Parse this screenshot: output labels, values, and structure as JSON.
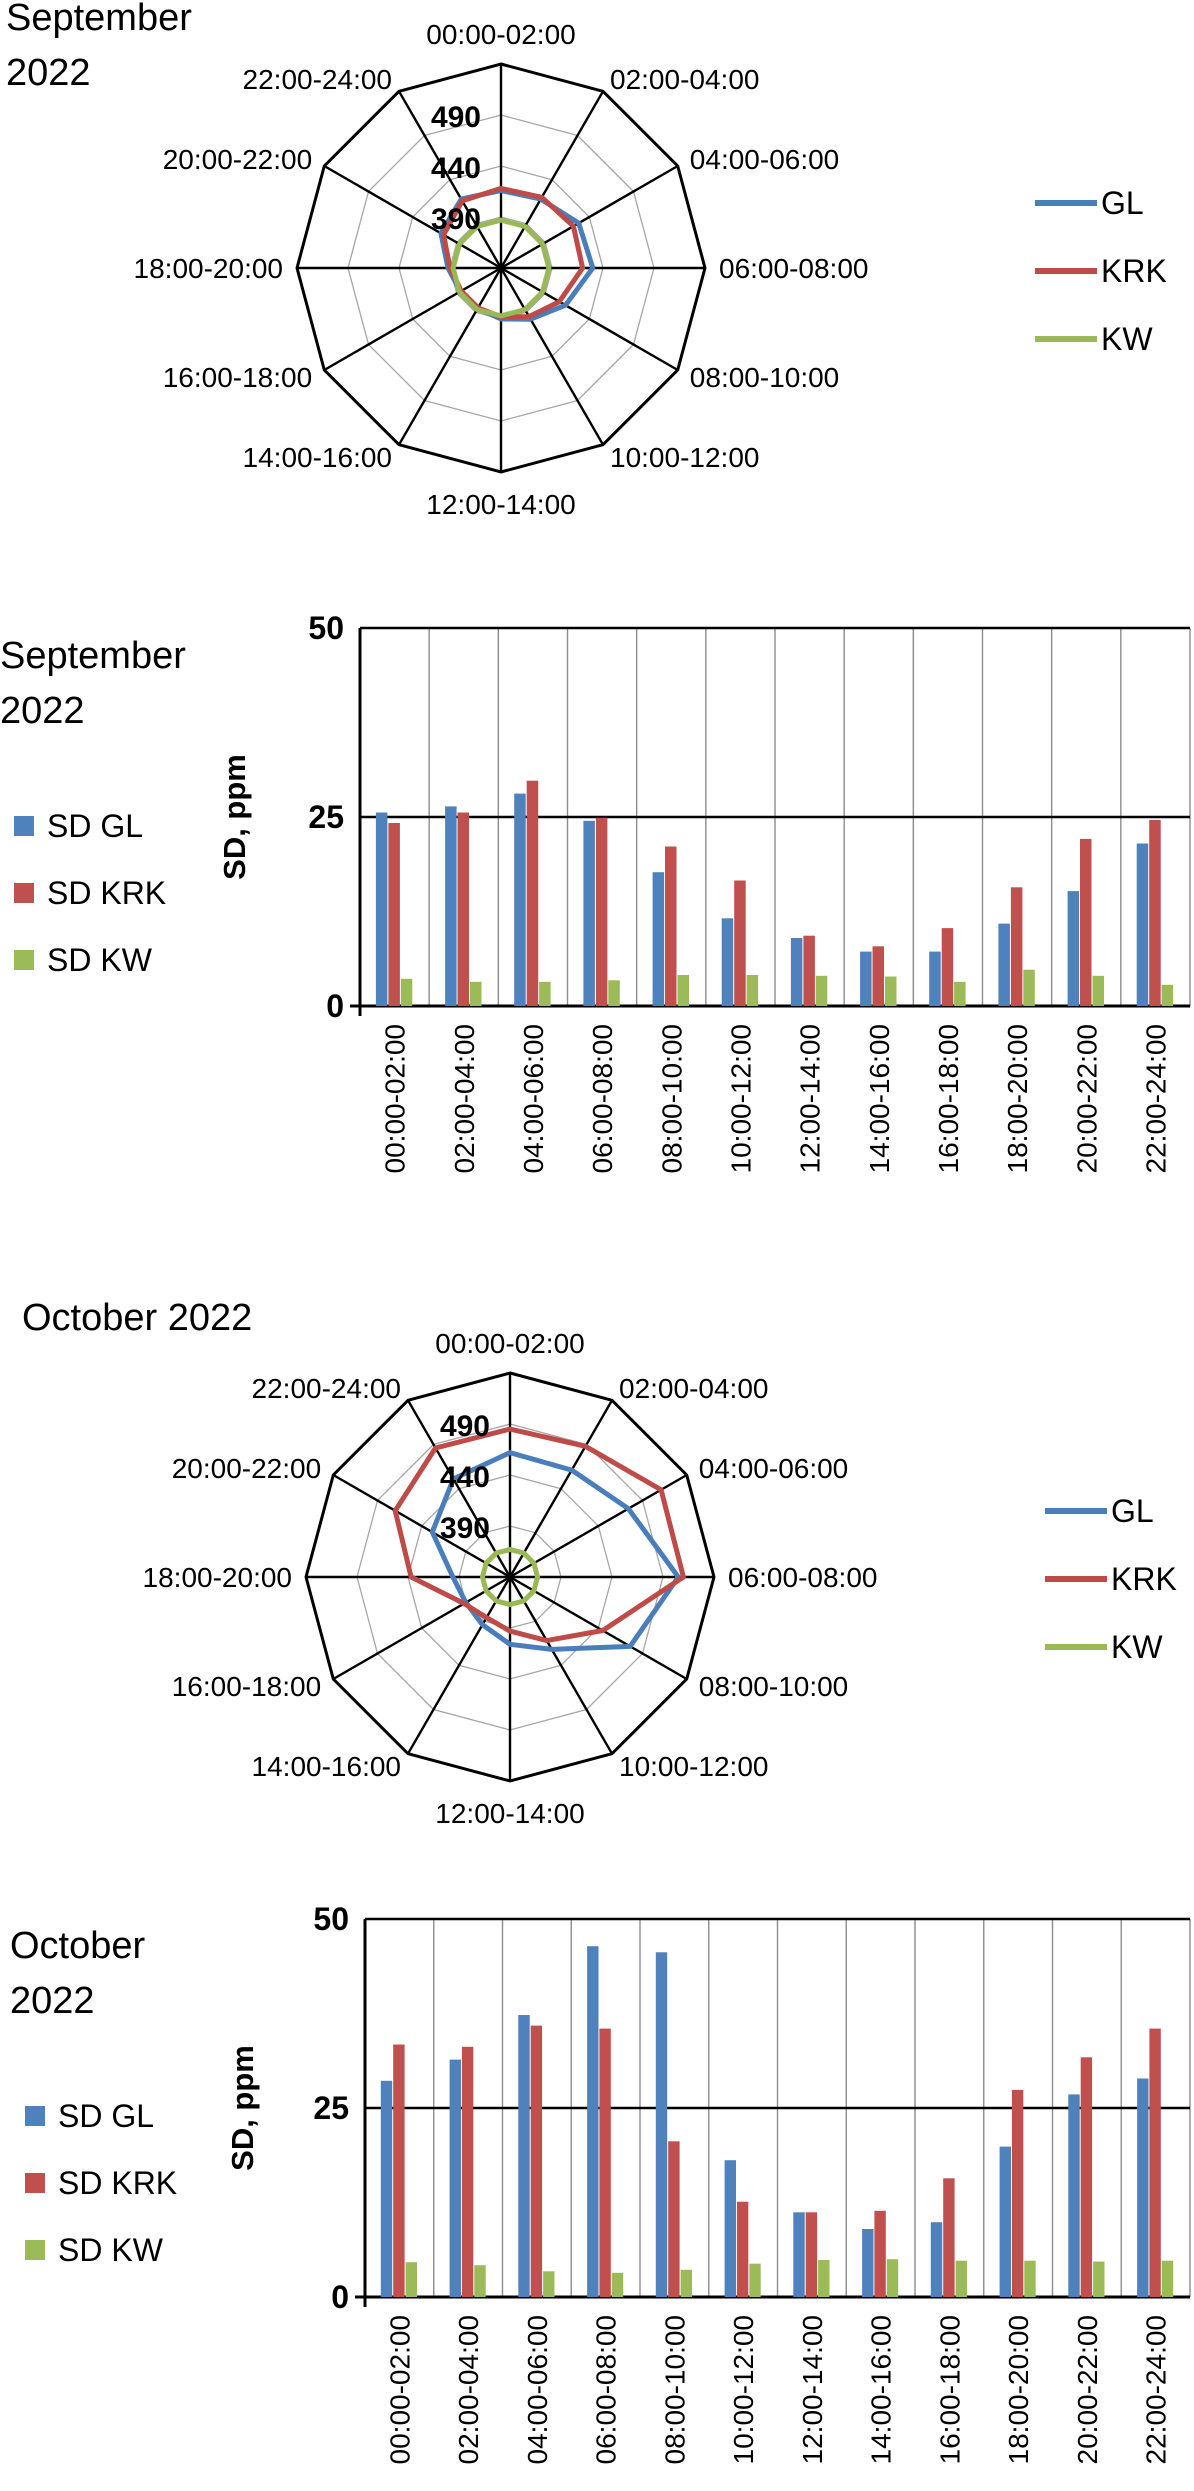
{
  "chart_data": [
    {
      "type": "radar",
      "title": "September 2022",
      "categories": [
        "00:00-02:00",
        "02:00-04:00",
        "04:00-06:00",
        "06:00-08:00",
        "08:00-10:00",
        "10:00-12:00",
        "12:00-14:00",
        "14:00-16:00",
        "16:00-18:00",
        "18:00-20:00",
        "20:00-22:00",
        "22:00-24:00"
      ],
      "scale_min": 340,
      "scale_max": 540,
      "tick_labels": [
        "390",
        "440",
        "490"
      ],
      "ticks": [
        390,
        440,
        490
      ],
      "legend_position": "right",
      "series": [
        {
          "name": "GL",
          "color": "#4a7ebb",
          "values": [
            416,
            418,
            428,
            430,
            413,
            398,
            390,
            386,
            386,
            392,
            408,
            418
          ]
        },
        {
          "name": "KRK",
          "color": "#be4b48",
          "values": [
            418,
            420,
            422,
            420,
            406,
            395,
            388,
            385,
            385,
            390,
            405,
            416
          ]
        },
        {
          "name": "KW",
          "color": "#98b954",
          "values": [
            387,
            387,
            387,
            387,
            387,
            387,
            387,
            387,
            387,
            387,
            387,
            387
          ]
        }
      ]
    },
    {
      "type": "bar",
      "title": "September 2022",
      "ylabel": "SD, ppm",
      "ylim": [
        0,
        50
      ],
      "yticks": [
        0,
        25,
        50
      ],
      "categories": [
        "00:00-02:00",
        "02:00-04:00",
        "04:00-06:00",
        "06:00-08:00",
        "08:00-10:00",
        "10:00-12:00",
        "12:00-14:00",
        "14:00-16:00",
        "16:00-18:00",
        "18:00-20:00",
        "20:00-22:00",
        "22:00-24:00"
      ],
      "legend_position": "left",
      "series": [
        {
          "name": "SD GL",
          "color": "#4f81bd",
          "values": [
            25.6,
            26.4,
            28.1,
            24.5,
            17.7,
            11.6,
            9.0,
            7.2,
            7.2,
            10.9,
            15.2,
            21.5
          ]
        },
        {
          "name": "SD KRK",
          "color": "#c0504d",
          "values": [
            24.2,
            25.6,
            29.8,
            24.9,
            21.1,
            16.6,
            9.3,
            7.9,
            10.3,
            15.7,
            22.1,
            24.6
          ]
        },
        {
          "name": "SD KW",
          "color": "#9bbb59",
          "values": [
            3.6,
            3.2,
            3.2,
            3.4,
            4.1,
            4.1,
            4.0,
            3.9,
            3.2,
            4.8,
            4.0,
            2.8
          ]
        }
      ]
    },
    {
      "type": "radar",
      "title": "October 2022",
      "categories": [
        "00:00-02:00",
        "02:00-04:00",
        "04:00-06:00",
        "06:00-08:00",
        "08:00-10:00",
        "10:00-12:00",
        "12:00-14:00",
        "14:00-16:00",
        "16:00-18:00",
        "18:00-20:00",
        "20:00-22:00",
        "22:00-24:00"
      ],
      "scale_min": 340,
      "scale_max": 540,
      "tick_labels": [
        "390",
        "440",
        "490"
      ],
      "ticks": [
        390,
        440,
        490
      ],
      "legend_position": "right",
      "series": [
        {
          "name": "GL",
          "color": "#4a7ebb",
          "values": [
            462,
            461,
            474,
            505,
            476,
            422,
            406,
            394,
            390,
            396,
            428,
            451
          ]
        },
        {
          "name": "KRK",
          "color": "#be4b48",
          "values": [
            485,
            488,
            511,
            510,
            445,
            412,
            393,
            386,
            392,
            437,
            470,
            486
          ]
        },
        {
          "name": "KW",
          "color": "#98b954",
          "values": [
            367,
            367,
            367,
            367,
            367,
            367,
            367,
            367,
            367,
            367,
            367,
            367
          ]
        }
      ]
    },
    {
      "type": "bar",
      "title": "October 2022",
      "ylabel": "SD, ppm",
      "ylim": [
        0,
        50
      ],
      "yticks": [
        0,
        25,
        50
      ],
      "categories": [
        "00:00-02:00",
        "02:00-04:00",
        "04:00-06:00",
        "06:00-08:00",
        "08:00-10:00",
        "10:00-12:00",
        "12:00-14:00",
        "14:00-16:00",
        "16:00-18:00",
        "18:00-20:00",
        "20:00-22:00",
        "22:00-24:00"
      ],
      "legend_position": "left",
      "series": [
        {
          "name": "SD GL",
          "color": "#4f81bd",
          "values": [
            28.6,
            31.4,
            37.3,
            46.4,
            45.6,
            18.1,
            11.2,
            9.0,
            9.9,
            19.9,
            26.8,
            28.9
          ]
        },
        {
          "name": "SD KRK",
          "color": "#c0504d",
          "values": [
            33.4,
            33.1,
            35.9,
            35.5,
            20.6,
            12.6,
            11.2,
            11.4,
            15.7,
            27.4,
            31.7,
            35.5
          ]
        },
        {
          "name": "SD KW",
          "color": "#9bbb59",
          "values": [
            4.6,
            4.2,
            3.4,
            3.2,
            3.6,
            4.4,
            4.9,
            5.0,
            4.8,
            4.8,
            4.7,
            4.8
          ]
        }
      ]
    }
  ]
}
